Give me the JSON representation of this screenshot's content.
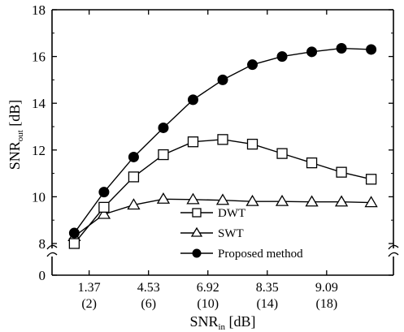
{
  "chart_data": {
    "type": "line",
    "xlabel": {
      "main": "SNR",
      "sub": "in",
      "unit": " [dB]"
    },
    "ylabel": {
      "main": "SNR",
      "sub": "out",
      "unit": " [dB]"
    },
    "x_tick_labels": [
      {
        "top": "1.37",
        "bottom": "(2)"
      },
      {
        "top": "4.53",
        "bottom": "(6)"
      },
      {
        "top": "6.92",
        "bottom": "(10)"
      },
      {
        "top": "8.35",
        "bottom": "(14)"
      },
      {
        "top": "9.09",
        "bottom": "(18)"
      }
    ],
    "x_tick_positions": [
      2,
      6,
      10,
      14,
      18
    ],
    "xlim": [
      -0.5,
      22.5
    ],
    "y_ticks": [
      0,
      8,
      10,
      12,
      14,
      16,
      18
    ],
    "y_break": [
      0,
      8
    ],
    "ylim": [
      0,
      18
    ],
    "x": [
      1,
      3,
      5,
      7,
      9,
      11,
      13,
      15,
      17,
      19,
      21
    ],
    "series": [
      {
        "name": "DWT",
        "marker": "square-open",
        "values": [
          8.0,
          9.55,
          10.85,
          11.8,
          12.35,
          12.45,
          12.25,
          11.85,
          11.45,
          11.05,
          10.75
        ]
      },
      {
        "name": "SWT",
        "marker": "triangle-open",
        "values": [
          8.3,
          9.25,
          9.65,
          9.9,
          9.88,
          9.85,
          9.8,
          9.8,
          9.78,
          9.78,
          9.75
        ]
      },
      {
        "name": "Proposed method",
        "marker": "circle-filled",
        "values": [
          8.45,
          10.2,
          11.7,
          12.95,
          14.15,
          15.0,
          15.65,
          16.0,
          16.2,
          16.35,
          16.3
        ]
      }
    ],
    "legend_position": "lower-center"
  }
}
